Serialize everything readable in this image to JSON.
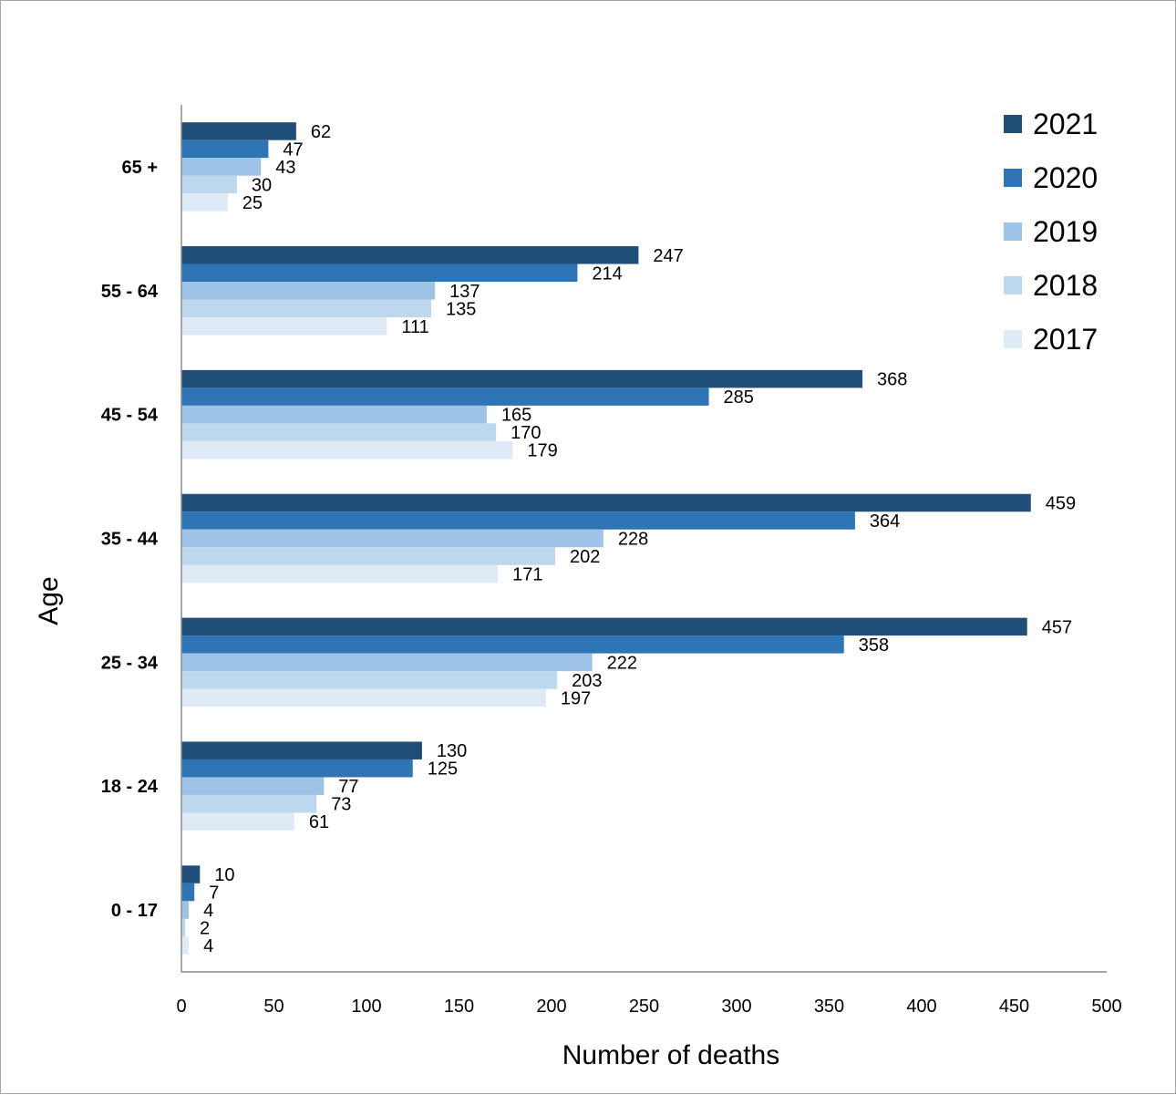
{
  "chart_data": {
    "type": "bar",
    "orientation": "horizontal",
    "xlabel": "Number of deaths",
    "ylabel": "Age",
    "xlim": [
      0,
      500
    ],
    "xticks": [
      "0",
      "50",
      "100",
      "150",
      "200",
      "250",
      "300",
      "350",
      "400",
      "450",
      "500"
    ],
    "xtick_values": [
      0,
      50,
      100,
      150,
      200,
      250,
      300,
      350,
      400,
      450,
      500
    ],
    "grid": false,
    "legend_position": "right",
    "categories": [
      "0  - 17",
      "18 - 24",
      "25 - 34",
      "35  - 44",
      "45 - 54",
      "55 - 64",
      "65 +"
    ],
    "series": [
      {
        "name": "2021",
        "color": "#1f4e79",
        "values": [
          10,
          130,
          457,
          459,
          368,
          247,
          62
        ]
      },
      {
        "name": "2020",
        "color": "#2e75b6",
        "values": [
          7,
          125,
          358,
          364,
          285,
          214,
          47
        ]
      },
      {
        "name": "2019",
        "color": "#9dc3e6",
        "values": [
          4,
          77,
          222,
          228,
          165,
          137,
          43
        ]
      },
      {
        "name": "2018",
        "color": "#bdd7ee",
        "values": [
          2,
          73,
          203,
          202,
          170,
          135,
          30
        ]
      },
      {
        "name": "2017",
        "color": "#deebf7",
        "values": [
          4,
          61,
          197,
          171,
          179,
          111,
          25
        ]
      }
    ]
  }
}
